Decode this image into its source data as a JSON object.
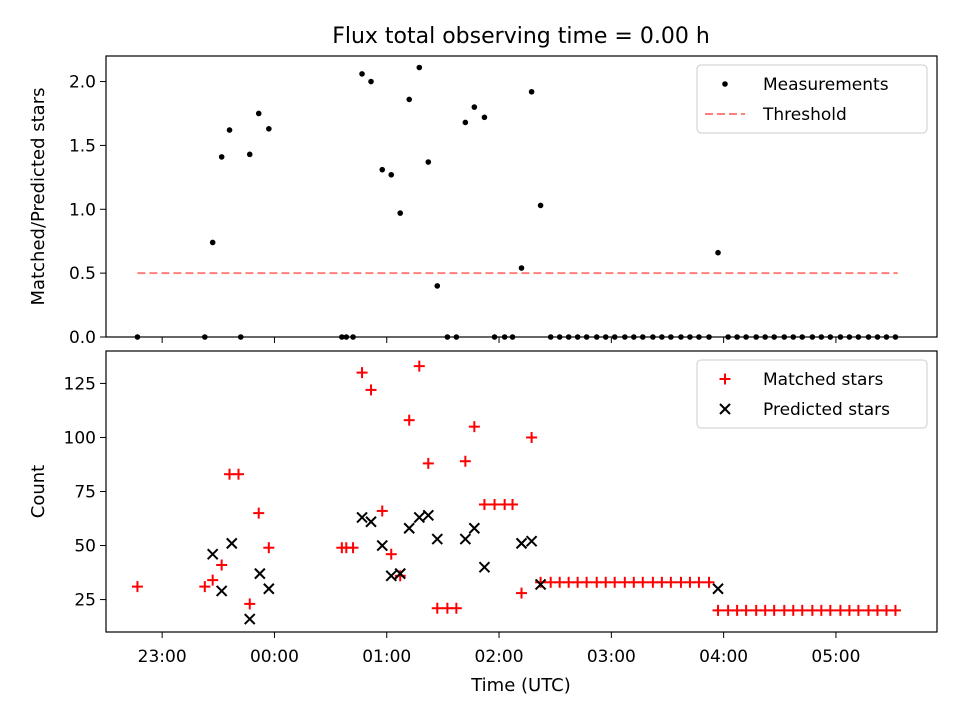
{
  "chart_data": {
    "title": "Flux total observing time = 0.00 h",
    "xlabel": "Time (UTC)",
    "xlim_hours": [
      -1.5,
      5.9
    ],
    "xticks": [
      {
        "v": -1,
        "label": "23:00"
      },
      {
        "v": 0,
        "label": "00:00"
      },
      {
        "v": 1,
        "label": "01:00"
      },
      {
        "v": 2,
        "label": "02:00"
      },
      {
        "v": 3,
        "label": "03:00"
      },
      {
        "v": 4,
        "label": "04:00"
      },
      {
        "v": 5,
        "label": "05:00"
      }
    ],
    "panels": [
      {
        "type": "scatter",
        "ylabel": "Matched/Predicted stars",
        "ylim": [
          0,
          2.2
        ],
        "yticks": [
          0,
          0.5,
          1,
          1.5,
          2
        ],
        "ytick_labels": [
          "0.0",
          "0.5",
          "1.0",
          "1.5",
          "2.0"
        ],
        "threshold": {
          "value": 0.5,
          "x_start": -1.22,
          "x_end": 5.55,
          "color": "#ff7f7f"
        },
        "legend": {
          "position": "top-right",
          "entries": [
            "Measurements",
            "Threshold"
          ]
        },
        "series": [
          {
            "name": "Measurements",
            "color": "#000000",
            "marker": "dot",
            "points": [
              [
                -1.22,
                0
              ],
              [
                -0.62,
                0
              ],
              [
                -0.55,
                0.74
              ],
              [
                -0.47,
                1.41
              ],
              [
                -0.4,
                1.62
              ],
              [
                -0.3,
                0
              ],
              [
                -0.22,
                1.43
              ],
              [
                -0.14,
                1.75
              ],
              [
                -0.05,
                1.63
              ],
              [
                0.6,
                0
              ],
              [
                0.64,
                0
              ],
              [
                0.7,
                0
              ],
              [
                0.78,
                2.06
              ],
              [
                0.86,
                2.0
              ],
              [
                0.96,
                1.31
              ],
              [
                1.04,
                1.27
              ],
              [
                1.12,
                0.97
              ],
              [
                1.2,
                1.86
              ],
              [
                1.29,
                2.11
              ],
              [
                1.37,
                1.37
              ],
              [
                1.45,
                0.4
              ],
              [
                1.54,
                0
              ],
              [
                1.62,
                0
              ],
              [
                1.7,
                1.68
              ],
              [
                1.78,
                1.8
              ],
              [
                1.87,
                1.72
              ],
              [
                1.96,
                0
              ],
              [
                2.05,
                0
              ],
              [
                2.12,
                0
              ],
              [
                2.2,
                0.54
              ],
              [
                2.29,
                1.92
              ],
              [
                2.37,
                1.03
              ],
              [
                2.46,
                0
              ],
              [
                2.54,
                0
              ],
              [
                2.62,
                0
              ],
              [
                2.7,
                0
              ],
              [
                2.78,
                0
              ],
              [
                2.87,
                0
              ],
              [
                2.95,
                0
              ],
              [
                3.03,
                0
              ],
              [
                3.12,
                0
              ],
              [
                3.2,
                0
              ],
              [
                3.28,
                0
              ],
              [
                3.37,
                0
              ],
              [
                3.45,
                0
              ],
              [
                3.53,
                0
              ],
              [
                3.62,
                0
              ],
              [
                3.7,
                0
              ],
              [
                3.78,
                0
              ],
              [
                3.87,
                0
              ],
              [
                3.95,
                0.66
              ],
              [
                4.04,
                0
              ],
              [
                4.12,
                0
              ],
              [
                4.2,
                0
              ],
              [
                4.29,
                0
              ],
              [
                4.37,
                0
              ],
              [
                4.45,
                0
              ],
              [
                4.54,
                0
              ],
              [
                4.62,
                0
              ],
              [
                4.7,
                0
              ],
              [
                4.79,
                0
              ],
              [
                4.87,
                0
              ],
              [
                4.95,
                0
              ],
              [
                5.04,
                0
              ],
              [
                5.12,
                0
              ],
              [
                5.2,
                0
              ],
              [
                5.29,
                0
              ],
              [
                5.37,
                0
              ],
              [
                5.45,
                0
              ],
              [
                5.53,
                0
              ]
            ]
          }
        ]
      },
      {
        "type": "scatter",
        "ylabel": "Count",
        "ylim": [
          10,
          140
        ],
        "yticks": [
          25,
          50,
          75,
          100,
          125
        ],
        "ytick_labels": [
          "25",
          "50",
          "75",
          "100",
          "125"
        ],
        "legend": {
          "position": "top-right",
          "entries": [
            "Matched stars",
            "Predicted stars"
          ]
        },
        "series": [
          {
            "name": "Matched stars",
            "color": "#ff0000",
            "marker": "plus",
            "points": [
              [
                -1.22,
                31
              ],
              [
                -0.62,
                31
              ],
              [
                -0.55,
                34
              ],
              [
                -0.47,
                41
              ],
              [
                -0.4,
                83
              ],
              [
                -0.32,
                83
              ],
              [
                -0.22,
                23
              ],
              [
                -0.14,
                65
              ],
              [
                -0.05,
                49
              ],
              [
                0.6,
                49
              ],
              [
                0.64,
                49
              ],
              [
                0.7,
                49
              ],
              [
                0.78,
                130
              ],
              [
                0.86,
                122
              ],
              [
                0.96,
                66
              ],
              [
                1.04,
                46
              ],
              [
                1.12,
                36
              ],
              [
                1.2,
                108
              ],
              [
                1.29,
                133
              ],
              [
                1.37,
                88
              ],
              [
                1.45,
                21
              ],
              [
                1.54,
                21
              ],
              [
                1.62,
                21
              ],
              [
                1.7,
                89
              ],
              [
                1.78,
                105
              ],
              [
                1.87,
                69
              ],
              [
                1.96,
                69
              ],
              [
                2.05,
                69
              ],
              [
                2.12,
                69
              ],
              [
                2.2,
                28
              ],
              [
                2.29,
                100
              ],
              [
                2.37,
                33
              ],
              [
                2.46,
                33
              ],
              [
                2.54,
                33
              ],
              [
                2.62,
                33
              ],
              [
                2.7,
                33
              ],
              [
                2.78,
                33
              ],
              [
                2.87,
                33
              ],
              [
                2.95,
                33
              ],
              [
                3.03,
                33
              ],
              [
                3.12,
                33
              ],
              [
                3.2,
                33
              ],
              [
                3.28,
                33
              ],
              [
                3.37,
                33
              ],
              [
                3.45,
                33
              ],
              [
                3.53,
                33
              ],
              [
                3.62,
                33
              ],
              [
                3.7,
                33
              ],
              [
                3.78,
                33
              ],
              [
                3.87,
                33
              ],
              [
                3.95,
                20
              ],
              [
                4.04,
                20
              ],
              [
                4.12,
                20
              ],
              [
                4.2,
                20
              ],
              [
                4.29,
                20
              ],
              [
                4.37,
                20
              ],
              [
                4.45,
                20
              ],
              [
                4.54,
                20
              ],
              [
                4.62,
                20
              ],
              [
                4.7,
                20
              ],
              [
                4.79,
                20
              ],
              [
                4.87,
                20
              ],
              [
                4.95,
                20
              ],
              [
                5.04,
                20
              ],
              [
                5.12,
                20
              ],
              [
                5.2,
                20
              ],
              [
                5.29,
                20
              ],
              [
                5.37,
                20
              ],
              [
                5.45,
                20
              ],
              [
                5.53,
                20
              ]
            ]
          },
          {
            "name": "Predicted stars",
            "color": "#000000",
            "marker": "x",
            "points": [
              [
                -0.55,
                46
              ],
              [
                -0.47,
                29
              ],
              [
                -0.38,
                51
              ],
              [
                -0.22,
                16
              ],
              [
                -0.13,
                37
              ],
              [
                -0.05,
                30
              ],
              [
                0.78,
                63
              ],
              [
                0.86,
                61
              ],
              [
                0.96,
                50
              ],
              [
                1.04,
                36
              ],
              [
                1.12,
                37
              ],
              [
                1.2,
                58
              ],
              [
                1.29,
                63
              ],
              [
                1.37,
                64
              ],
              [
                1.45,
                53
              ],
              [
                1.7,
                53
              ],
              [
                1.78,
                58
              ],
              [
                1.87,
                40
              ],
              [
                2.2,
                51
              ],
              [
                2.29,
                52
              ],
              [
                2.37,
                32
              ],
              [
                3.95,
                30
              ]
            ]
          }
        ]
      }
    ]
  }
}
